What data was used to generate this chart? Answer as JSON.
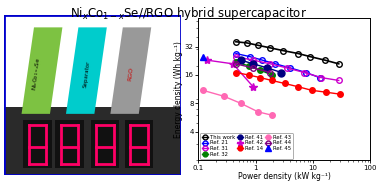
{
  "title_parts": [
    "Ni",
    "x",
    "Co",
    "1-x",
    "Se//RGO hybrid supercapacitor"
  ],
  "xlabel": "Power density (kW kg⁻¹)",
  "ylabel": "Energy density (Wh kg⁻¹)",
  "xlim": [
    0.1,
    100
  ],
  "ylim": [
    2,
    64
  ],
  "series": {
    "This work": {
      "x": [
        0.45,
        0.7,
        1.1,
        1.8,
        3.0,
        5.5,
        9.0,
        16.0,
        28.0
      ],
      "y": [
        36,
        35,
        33,
        31,
        29,
        27,
        25,
        23,
        21
      ],
      "color": "#000000",
      "marker": "o",
      "markersize": 4,
      "fillstyle": "none",
      "linestyle": "-",
      "linewidth": 1.2,
      "zorder": 5
    },
    "Ref. 21": {
      "x": [
        0.45,
        0.8,
        1.3,
        2.2,
        4.0,
        7.5,
        13.0
      ],
      "y": [
        27,
        25,
        23,
        21,
        19,
        17,
        15
      ],
      "color": "#0000ff",
      "marker": "o",
      "markersize": 4,
      "fillstyle": "none",
      "linestyle": "-",
      "linewidth": 1.0,
      "zorder": 4
    },
    "Ref. 31": {
      "x": [
        0.45,
        0.9,
        1.8,
        3.5,
        7.0,
        14.0,
        28.0
      ],
      "y": [
        25,
        23,
        21,
        19,
        17,
        15,
        14
      ],
      "color": "#cc00cc",
      "marker": "o",
      "markersize": 4,
      "fillstyle": "none",
      "linestyle": "-",
      "linewidth": 1.0,
      "zorder": 4
    },
    "Ref. 32": {
      "x": [
        0.45,
        0.75,
        1.2,
        1.9
      ],
      "y": [
        22,
        20,
        18,
        16
      ],
      "color": "#008000",
      "marker": "o",
      "markersize": 4,
      "fillstyle": "full",
      "linestyle": "-",
      "linewidth": 1.0,
      "zorder": 4
    },
    "Ref. 41": {
      "x": [
        0.55,
        0.9,
        1.6,
        2.8
      ],
      "y": [
        23,
        21,
        19,
        17
      ],
      "color": "#000080",
      "marker": "o",
      "markersize": 5,
      "fillstyle": "full",
      "linestyle": "-",
      "linewidth": 1.0,
      "zorder": 4
    },
    "Ref. 42": {
      "x": [
        0.14,
        0.4,
        0.9
      ],
      "y": [
        23,
        21,
        12
      ],
      "color": "#cc00cc",
      "marker": "*",
      "markersize": 6,
      "fillstyle": "full",
      "linestyle": "-",
      "linewidth": 1.0,
      "zorder": 4
    },
    "Ref. 14": {
      "x": [
        0.45,
        0.75,
        1.2,
        1.9,
        3.2,
        5.5,
        9.5,
        17.0,
        30.0
      ],
      "y": [
        17,
        16,
        15,
        14,
        13,
        12,
        11,
        10.5,
        10
      ],
      "color": "#ff0000",
      "marker": "o",
      "markersize": 4,
      "fillstyle": "full",
      "linestyle": "-",
      "linewidth": 1.0,
      "zorder": 4
    },
    "Ref. 43": {
      "x": [
        0.12,
        0.28,
        0.55,
        1.1,
        1.9
      ],
      "y": [
        11,
        9.5,
        8,
        6.5,
        6
      ],
      "color": "#ff69b4",
      "marker": "o",
      "markersize": 4,
      "fillstyle": "full",
      "linestyle": "-",
      "linewidth": 1.0,
      "zorder": 4
    },
    "Ref. 44": {
      "x": [
        0.45,
        0.9,
        1.8
      ],
      "y": [
        21,
        19,
        17
      ],
      "color": "#800080",
      "marker": "o",
      "markersize": 4,
      "fillstyle": "none",
      "linestyle": "-",
      "linewidth": 1.0,
      "zorder": 4
    },
    "Ref. 45": {
      "x": [
        0.12
      ],
      "y": [
        25
      ],
      "color": "#0000ff",
      "marker": "^",
      "markersize": 5,
      "fillstyle": "full",
      "linestyle": "none",
      "linewidth": 1.0,
      "zorder": 4
    }
  },
  "bg_color": "#ffffff",
  "panel_green": "#7dc242",
  "panel_cyan": "#00cccc",
  "panel_gray": "#999999",
  "photo_bg": "#2a2a2a",
  "led_color": "#ff0066",
  "border_color": "#0000cc"
}
